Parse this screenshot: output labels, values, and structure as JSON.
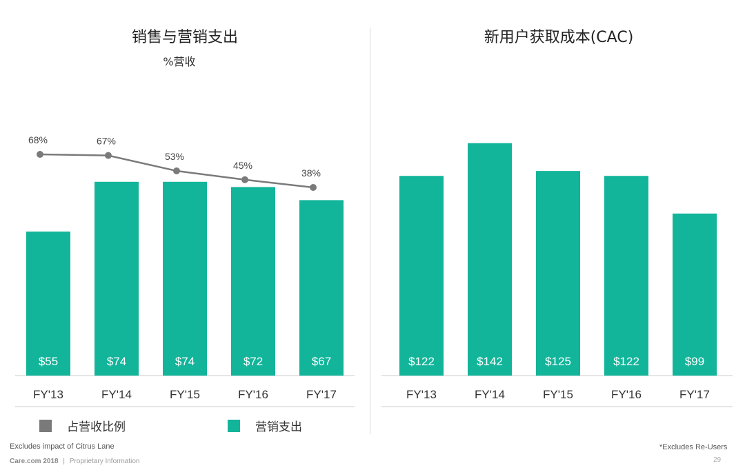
{
  "chart_data": [
    {
      "type": "bar",
      "title": "销售与营销支出",
      "subtitle": "%营收",
      "categories": [
        "FY'13",
        "FY'14",
        "FY'15",
        "FY'16",
        "FY'17"
      ],
      "series": [
        {
          "name": "营销支出",
          "type": "bar",
          "values": [
            55,
            74,
            74,
            72,
            67
          ],
          "labels": [
            "$55",
            "$74",
            "$74",
            "$72",
            "$67"
          ]
        },
        {
          "name": "占营收比例",
          "type": "line",
          "values": [
            68,
            67,
            53,
            45,
            38
          ],
          "labels": [
            "68%",
            "67%",
            "53%",
            "45%",
            "38%"
          ]
        }
      ],
      "legend": "bottom"
    },
    {
      "type": "bar",
      "title": "新用户获取成本(CAC)",
      "categories": [
        "FY'13",
        "FY'14",
        "FY'15",
        "FY'16",
        "FY'17"
      ],
      "values": [
        122,
        142,
        125,
        122,
        99
      ],
      "labels": [
        "$122",
        "$142",
        "$125",
        "$122",
        "$99"
      ]
    }
  ],
  "colors": {
    "bar": "#12b59a",
    "line": "#7a7a7a",
    "axis": "#cccccc",
    "tick_text": "#333333"
  },
  "footnotes": {
    "left": "Excludes impact of Citrus Lane",
    "right": "*Excludes Re-Users"
  },
  "footer": {
    "brand": "Care.com 2018",
    "separator": "|",
    "info": "Proprietary Information",
    "page": "29"
  }
}
